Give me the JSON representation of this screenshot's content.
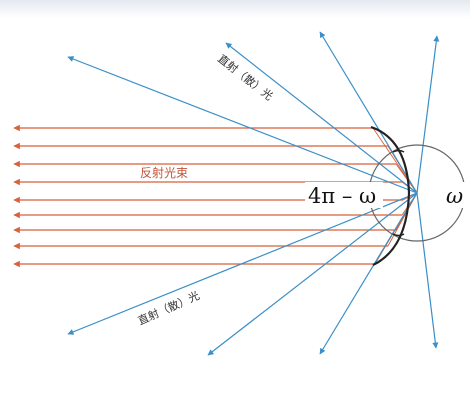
{
  "labels": {
    "direct_light_upper": "直射（散）光",
    "direct_light_lower": "直射（散）光",
    "reflected_beam": "反射光束",
    "outer_angle": "4π – ω",
    "inner_angle": "ω"
  },
  "colors": {
    "reflected_rays": "#d8603a",
    "direct_rays": "#3a8fc8",
    "mirror": "#222222",
    "angle_circle": "#666666",
    "label_reflected": "#c0553a",
    "label_text": "#333333"
  }
}
